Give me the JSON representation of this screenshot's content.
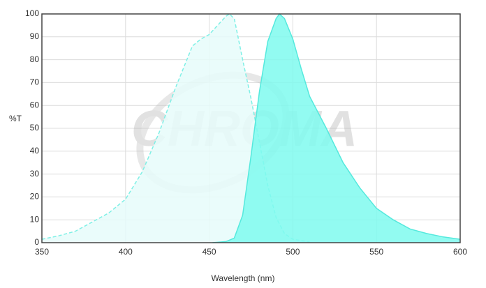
{
  "chart_data": {
    "type": "area",
    "watermark": "CHROMA",
    "xlabel": "Wavelength (nm)",
    "ylabel": "%T",
    "xlim": [
      350,
      600
    ],
    "xticks": [
      350,
      400,
      450,
      500,
      550,
      600
    ],
    "ylim": [
      0,
      100
    ],
    "yticks": [
      0,
      10,
      20,
      30,
      40,
      50,
      60,
      70,
      80,
      90,
      100
    ],
    "grid": true,
    "series": [
      {
        "color": "#e6fcfa",
        "line_color": "#7ff0e6",
        "line_style": "dashed",
        "x": [
          350,
          360,
          370,
          380,
          390,
          400,
          410,
          420,
          430,
          440,
          445,
          450,
          455,
          460,
          462,
          465,
          470,
          475,
          480,
          485,
          490,
          495,
          500,
          510
        ],
        "values": [
          1.5,
          3,
          5,
          9,
          13,
          19,
          31,
          48,
          68,
          86,
          89,
          91,
          95,
          99,
          100,
          98,
          80,
          63,
          44,
          25,
          11,
          4,
          1.5,
          0.3
        ]
      },
      {
        "color": "#7ffaef",
        "line_color": "#55e9dd",
        "line_style": "solid",
        "x": [
          452,
          460,
          465,
          470,
          475,
          480,
          485,
          490,
          492,
          495,
          500,
          505,
          510,
          520,
          530,
          540,
          550,
          560,
          570,
          580,
          590,
          600
        ],
        "values": [
          0,
          0.5,
          2,
          12,
          38,
          66,
          88,
          98,
          100,
          98,
          89,
          76,
          64,
          50,
          35,
          24,
          15,
          10,
          6,
          4,
          2.5,
          1.5
        ]
      }
    ]
  }
}
